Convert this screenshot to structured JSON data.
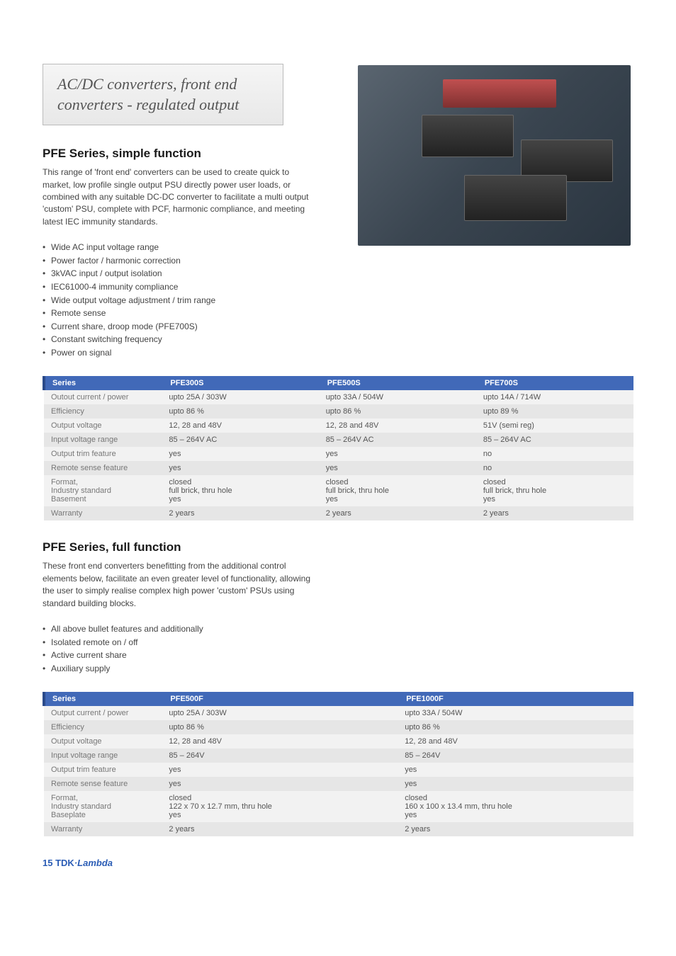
{
  "title": "AC/DC converters, front end converters - regulated output",
  "section1": {
    "heading": "PFE Series, simple function",
    "desc": " This range of 'front end' converters can be used to create quick to market, low profile single output PSU directly power user loads, or combined with any suitable DC-DC converter to facilitate a multi output 'custom' PSU, complete with PCF, harmonic compliance, and meeting latest IEC immunity standards.",
    "features": [
      "Wide AC input voltage range",
      "Power factor / harmonic correction",
      "3kVAC  input / output isolation",
      "IEC61000-4 immunity compliance",
      "Wide output voltage adjustment / trim range",
      "Remote sense",
      "Current share, droop mode (PFE700S)",
      "Constant switching frequency",
      "Power on signal"
    ]
  },
  "table1": {
    "headers": [
      "Series",
      "PFE300S",
      "PFE500S",
      "PFE700S"
    ],
    "rows": [
      [
        "Outout current / power",
        "upto 25A / 303W",
        "upto 33A / 504W",
        "upto 14A / 714W"
      ],
      [
        "Efficiency",
        "upto 86 %",
        "upto 86 %",
        "upto 89 %"
      ],
      [
        "Output voltage",
        "12, 28 and 48V",
        "12, 28 and 48V",
        "51V (semi reg)"
      ],
      [
        "Input voltage range",
        "85 – 264V AC",
        "85 – 264V AC",
        "85 – 264V AC"
      ],
      [
        "Output trim feature",
        "yes",
        "yes",
        "no"
      ],
      [
        "Remote sense feature",
        "yes",
        "yes",
        "no"
      ],
      [
        "Format,\nIndustry standard\nBasement",
        "closed\nfull brick, thru hole\nyes",
        "closed\nfull brick, thru hole\nyes",
        "closed\nfull brick, thru hole\nyes"
      ],
      [
        "Warranty",
        "2 years",
        "2 years",
        "2 years"
      ]
    ],
    "col_widths": [
      "20%",
      "26.6%",
      "26.7%",
      "26.7%"
    ]
  },
  "section2": {
    "heading": "PFE Series, full function",
    "desc": "These front end converters benefitting from the additional control elements below, facilitate an even greater level of functionality, allowing the user to simply realise complex high power 'custom' PSUs using standard building blocks.",
    "features": [
      "All above bullet features and additionally",
      "Isolated remote on / off",
      "Active current share",
      "Auxiliary supply"
    ]
  },
  "table2": {
    "headers": [
      "Series",
      "PFE500F",
      "PFE1000F"
    ],
    "rows": [
      [
        "Output current / power",
        "upto 25A / 303W",
        "upto 33A / 504W"
      ],
      [
        "Efficiency",
        "upto 86 %",
        "upto 86 %"
      ],
      [
        "Output voltage",
        "12, 28 and 48V",
        "12, 28 and 48V"
      ],
      [
        "Input voltage range",
        "85 – 264V",
        "85 – 264V"
      ],
      [
        "Output trim feature",
        "yes",
        "yes"
      ],
      [
        "Remote sense feature",
        "yes",
        "yes"
      ],
      [
        "Format,\nIndustry standard\nBaseplate",
        "closed\n122 x 70 x 12.7 mm, thru hole\nyes",
        "closed\n160 x 100 x 13.4 mm, thru hole\nyes"
      ],
      [
        "Warranty",
        "2 years",
        "2 years"
      ]
    ],
    "col_widths": [
      "20%",
      "40%",
      "40%"
    ]
  },
  "footer": {
    "page": "15",
    "brand1": "TDK",
    "brand2": "·Lambda"
  },
  "colors": {
    "header_bg": "#4169b8",
    "header_border": "#2a4a8a",
    "row_even": "#f2f2f2",
    "row_odd": "#e6e6e6",
    "text": "#444",
    "brand": "#2a5cb5"
  }
}
